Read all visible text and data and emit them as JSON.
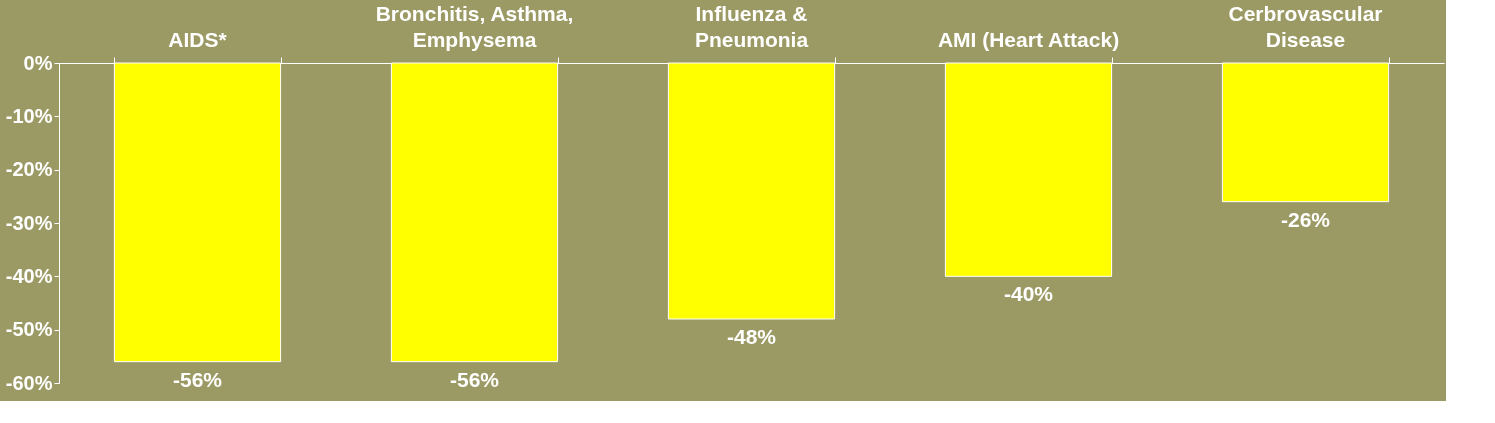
{
  "chart_data": {
    "type": "bar",
    "categories": [
      "AIDS*",
      "Bronchitis, Asthma,\nEmphysema",
      "Influenza &\nPneumonia",
      "AMI (Heart Attack)",
      "Cerbrovascular\nDisease"
    ],
    "values": [
      -56,
      -56,
      -48,
      -40,
      -26
    ],
    "value_labels": [
      "-56%",
      "-56%",
      "-48%",
      "-40%",
      "-26%"
    ],
    "color": "#ffff00",
    "ylim": [
      -60,
      0
    ],
    "yticks": [
      {
        "value": 0,
        "label": "0%"
      },
      {
        "value": -10,
        "label": "-10%"
      },
      {
        "value": -20,
        "label": "-20%"
      },
      {
        "value": -30,
        "label": "-30%"
      },
      {
        "value": -40,
        "label": "-40%"
      },
      {
        "value": -50,
        "label": "-50%"
      },
      {
        "value": -60,
        "label": "-60%"
      }
    ],
    "grid": false
  }
}
